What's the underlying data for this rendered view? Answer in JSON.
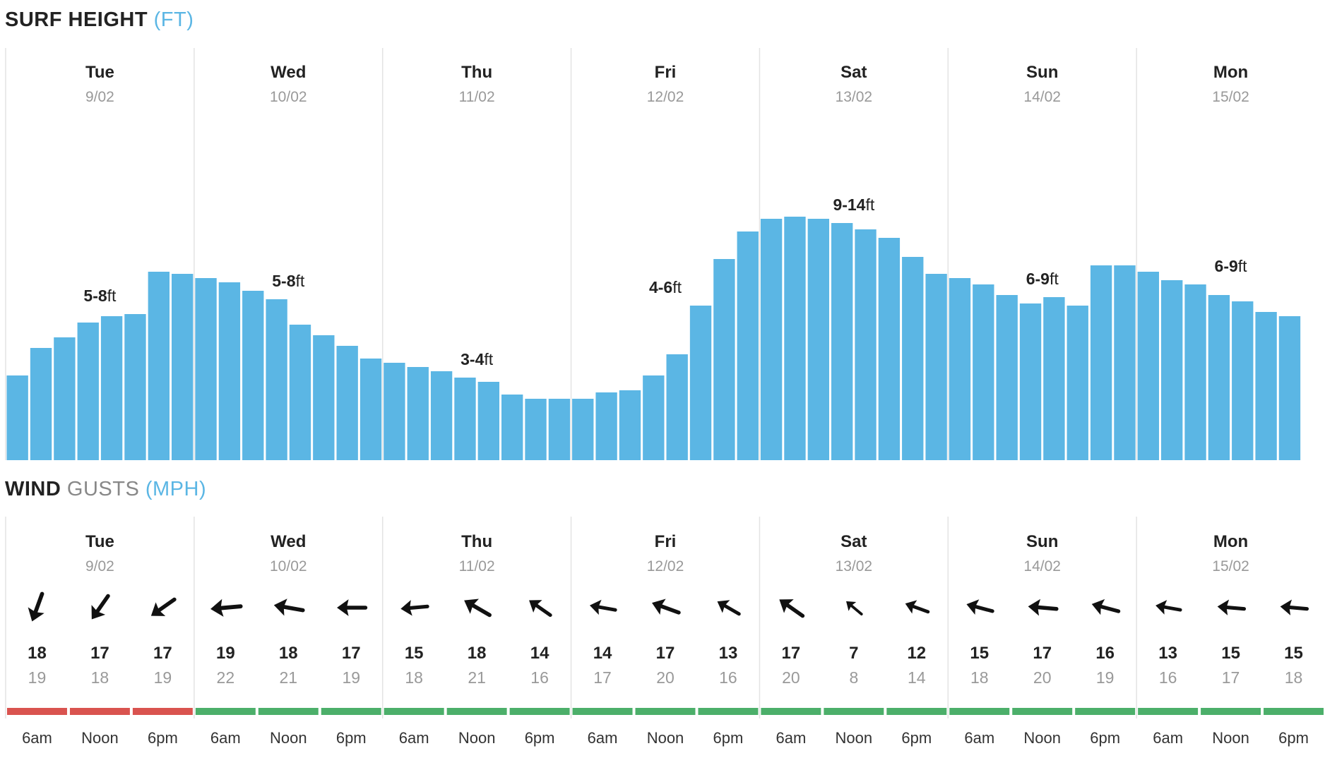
{
  "surf": {
    "title_bold": "SURF HEIGHT",
    "unit": "(FT)",
    "bar_color": "#5bb6e4"
  },
  "wind": {
    "title_bold": "WIND",
    "title_muted": "GUSTS",
    "unit": "(MPH)",
    "colors": {
      "red": "#d9534f",
      "green": "#4caf6a"
    }
  },
  "days": [
    {
      "name": "Tue",
      "date": "9/02"
    },
    {
      "name": "Wed",
      "date": "10/02"
    },
    {
      "name": "Thu",
      "date": "11/02"
    },
    {
      "name": "Fri",
      "date": "12/02"
    },
    {
      "name": "Sat",
      "date": "13/02"
    },
    {
      "name": "Sun",
      "date": "14/02"
    },
    {
      "name": "Mon",
      "date": "15/02"
    }
  ],
  "chart_data": [
    {
      "type": "bar",
      "title": "SURF HEIGHT (FT)",
      "ylim": [
        0,
        20
      ],
      "grid": false,
      "days": [
        "Tue",
        "Wed",
        "Thu",
        "Fri",
        "Sat",
        "Sun",
        "Mon"
      ],
      "values": [
        [
          4.0,
          5.3,
          5.8,
          6.5,
          6.8,
          6.9,
          8.9,
          8.8
        ],
        [
          8.6,
          8.4,
          8.0,
          7.6,
          6.4,
          5.9,
          5.4,
          4.8
        ],
        [
          4.6,
          4.4,
          4.2,
          3.9,
          3.7,
          3.1,
          2.9,
          2.9
        ],
        [
          2.9,
          3.2,
          3.3,
          4.0,
          5.0,
          7.3,
          9.5,
          10.8
        ],
        [
          11.4,
          11.5,
          11.4,
          11.2,
          10.9,
          10.5,
          9.6,
          8.8
        ],
        [
          8.6,
          8.3,
          7.8,
          7.4,
          7.7,
          7.3,
          9.2,
          9.2
        ],
        [
          8.9,
          8.5,
          8.3,
          7.8,
          7.5,
          7.0,
          6.8
        ]
      ],
      "range_labels": [
        {
          "day": "Tue",
          "num": "5-8",
          "unit": "ft"
        },
        {
          "day": "Wed",
          "num": "5-8",
          "unit": "ft"
        },
        {
          "day": "Thu",
          "num": "3-4",
          "unit": "ft"
        },
        {
          "day": "Fri",
          "num": "4-6",
          "unit": "ft"
        },
        {
          "day": "Sat",
          "num": "9-14",
          "unit": "ft"
        },
        {
          "day": "Sun",
          "num": "6-9",
          "unit": "ft"
        },
        {
          "day": "Mon",
          "num": "6-9",
          "unit": "ft"
        }
      ]
    },
    {
      "type": "table",
      "title": "WIND GUSTS (MPH)",
      "times": [
        "6am",
        "Noon",
        "6pm"
      ],
      "entries": [
        {
          "speed": 18,
          "gust": 19,
          "dir_deg": 200,
          "rating": "red"
        },
        {
          "speed": 17,
          "gust": 18,
          "dir_deg": 215,
          "rating": "red"
        },
        {
          "speed": 17,
          "gust": 19,
          "dir_deg": 235,
          "rating": "red"
        },
        {
          "speed": 19,
          "gust": 22,
          "dir_deg": 265,
          "rating": "green"
        },
        {
          "speed": 18,
          "gust": 21,
          "dir_deg": 280,
          "rating": "green"
        },
        {
          "speed": 17,
          "gust": 19,
          "dir_deg": 270,
          "rating": "green"
        },
        {
          "speed": 15,
          "gust": 18,
          "dir_deg": 265,
          "rating": "green"
        },
        {
          "speed": 18,
          "gust": 21,
          "dir_deg": 300,
          "rating": "green"
        },
        {
          "speed": 14,
          "gust": 16,
          "dir_deg": 305,
          "rating": "green"
        },
        {
          "speed": 14,
          "gust": 17,
          "dir_deg": 280,
          "rating": "green"
        },
        {
          "speed": 17,
          "gust": 20,
          "dir_deg": 290,
          "rating": "green"
        },
        {
          "speed": 13,
          "gust": 16,
          "dir_deg": 300,
          "rating": "green"
        },
        {
          "speed": 17,
          "gust": 20,
          "dir_deg": 305,
          "rating": "green"
        },
        {
          "speed": 7,
          "gust": 8,
          "dir_deg": 310,
          "rating": "green"
        },
        {
          "speed": 12,
          "gust": 14,
          "dir_deg": 290,
          "rating": "green"
        },
        {
          "speed": 15,
          "gust": 18,
          "dir_deg": 285,
          "rating": "green"
        },
        {
          "speed": 17,
          "gust": 20,
          "dir_deg": 275,
          "rating": "green"
        },
        {
          "speed": 16,
          "gust": 19,
          "dir_deg": 285,
          "rating": "green"
        },
        {
          "speed": 13,
          "gust": 16,
          "dir_deg": 280,
          "rating": "green"
        },
        {
          "speed": 15,
          "gust": 17,
          "dir_deg": 275,
          "rating": "green"
        },
        {
          "speed": 15,
          "gust": 18,
          "dir_deg": 275,
          "rating": "green"
        }
      ]
    }
  ]
}
